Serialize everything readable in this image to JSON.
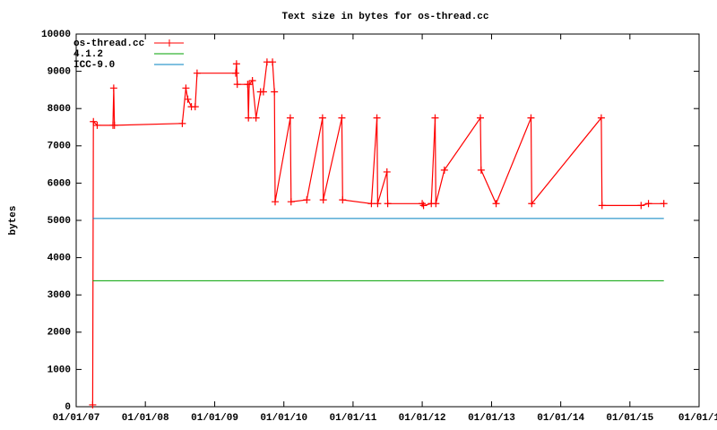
{
  "chart_data": {
    "type": "line",
    "title": "Text size in bytes for os-thread.cc",
    "ylabel": "bytes",
    "xlim": [
      "2007-01-01",
      "2016-01-01"
    ],
    "xticks": [
      {
        "value": "2007-01-01",
        "label": "01/01/07"
      },
      {
        "value": "2008-01-01",
        "label": "01/01/08"
      },
      {
        "value": "2009-01-01",
        "label": "01/01/09"
      },
      {
        "value": "2010-01-01",
        "label": "01/01/10"
      },
      {
        "value": "2011-01-01",
        "label": "01/01/11"
      },
      {
        "value": "2012-01-01",
        "label": "01/01/12"
      },
      {
        "value": "2013-01-01",
        "label": "01/01/13"
      },
      {
        "value": "2014-01-01",
        "label": "01/01/14"
      },
      {
        "value": "2015-01-01",
        "label": "01/01/15"
      },
      {
        "value": "2016-01-01",
        "label": "01/01/1"
      }
    ],
    "ylim": [
      0,
      10000
    ],
    "yticks": [
      0,
      1000,
      2000,
      3000,
      4000,
      5000,
      6000,
      7000,
      8000,
      9000,
      10000
    ],
    "legend": "top left",
    "grid": false,
    "series": [
      {
        "name": "os-thread.cc",
        "color": "#ff0000",
        "markers": true,
        "x": [
          "2007-03-29",
          "2007-04-02",
          "2007-04-22",
          "2007-07-14",
          "2007-07-18",
          "2007-07-22",
          "2008-07-14",
          "2008-08-02",
          "2008-08-12",
          "2008-08-31",
          "2008-09-20",
          "2008-09-30",
          "2009-04-22",
          "2009-04-26",
          "2009-04-30",
          "2009-06-24",
          "2009-06-28",
          "2009-07-02",
          "2009-07-19",
          "2009-08-07",
          "2009-08-31",
          "2009-09-15",
          "2009-10-04",
          "2009-11-02",
          "2009-11-12",
          "2009-11-16",
          "2010-02-04",
          "2010-02-08",
          "2010-05-02",
          "2010-07-24",
          "2010-07-28",
          "2010-11-03",
          "2010-11-07",
          "2011-04-08",
          "2011-05-07",
          "2011-05-11",
          "2011-06-29",
          "2011-07-03",
          "2012-01-01",
          "2012-01-08",
          "2012-02-18",
          "2012-03-09",
          "2012-03-13",
          "2012-04-27",
          "2012-11-03",
          "2012-11-07",
          "2013-01-25",
          "2013-07-28",
          "2013-08-01",
          "2014-08-03",
          "2014-08-07",
          "2015-03-01",
          "2015-04-09",
          "2015-06-29"
        ],
        "values": [
          50,
          7650,
          7550,
          7550,
          8550,
          7550,
          7600,
          8550,
          8250,
          8050,
          8050,
          8950,
          8950,
          9200,
          8650,
          8650,
          7750,
          8650,
          8750,
          7750,
          8450,
          8450,
          9250,
          9250,
          8450,
          5500,
          7750,
          5500,
          5550,
          7750,
          5550,
          7750,
          5550,
          5450,
          7750,
          5450,
          6300,
          5450,
          5450,
          5400,
          5450,
          7750,
          5450,
          6350,
          7750,
          6350,
          5450,
          7750,
          5450,
          7750,
          5400,
          5400,
          5450,
          5450
        ]
      },
      {
        "name": "4.1.2",
        "color": "#00a000",
        "markers": false,
        "x": [
          "2007-03-29",
          "2015-06-29"
        ],
        "values": [
          3380,
          3380
        ]
      },
      {
        "name": "ICC-9.0",
        "color": "#0080c0",
        "markers": false,
        "x": [
          "2007-03-29",
          "2015-06-29"
        ],
        "values": [
          5050,
          5050
        ]
      }
    ]
  }
}
